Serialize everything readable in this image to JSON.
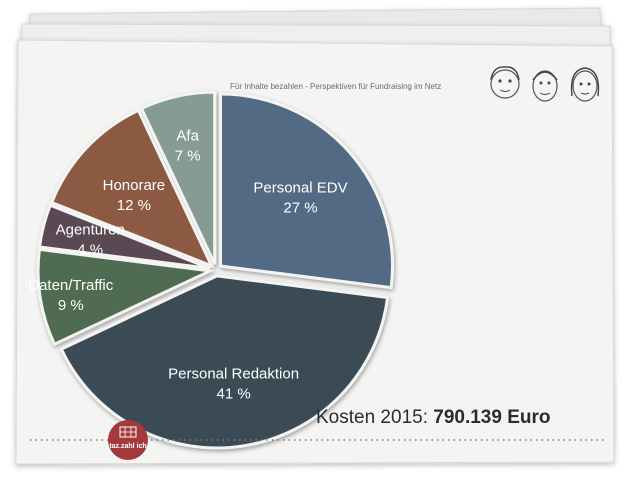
{
  "header": {
    "tagline": "Für Inhalte bezahlen - Perspektiven für Fundraising im Netz"
  },
  "footer": {
    "cost_label": "Kosten 2015:",
    "cost_value": "790.139 Euro",
    "logo_text": "taz.zahl ich"
  },
  "colors": {
    "paper": "#f4f4f2",
    "logo": "#a33a3a",
    "dots": "#7a7a7a"
  },
  "icons": [
    "portrait-sketch-icon",
    "portrait-sketch-icon",
    "portrait-sketch-icon",
    "taz-logo-icon"
  ],
  "chart_data": {
    "type": "pie",
    "title": "",
    "slices": [
      {
        "label": "Personal EDV",
        "value": 27,
        "value_label": "27 %",
        "color": "#536b85"
      },
      {
        "label": "Personal Redaktion",
        "value": 41,
        "value_label": "41 %",
        "color": "#3b4b55"
      },
      {
        "label": "Daten/Traffic",
        "value": 9,
        "value_label": "9 %",
        "color": "#4f6c53"
      },
      {
        "label": "Agenturen",
        "value": 4,
        "value_label": "4 %",
        "color": "#5a4a52"
      },
      {
        "label": "Honorare",
        "value": 12,
        "value_label": "12 %",
        "color": "#8c5a42"
      },
      {
        "label": "Afa",
        "value": 7,
        "value_label": "7 %",
        "color": "#869c92"
      }
    ]
  }
}
